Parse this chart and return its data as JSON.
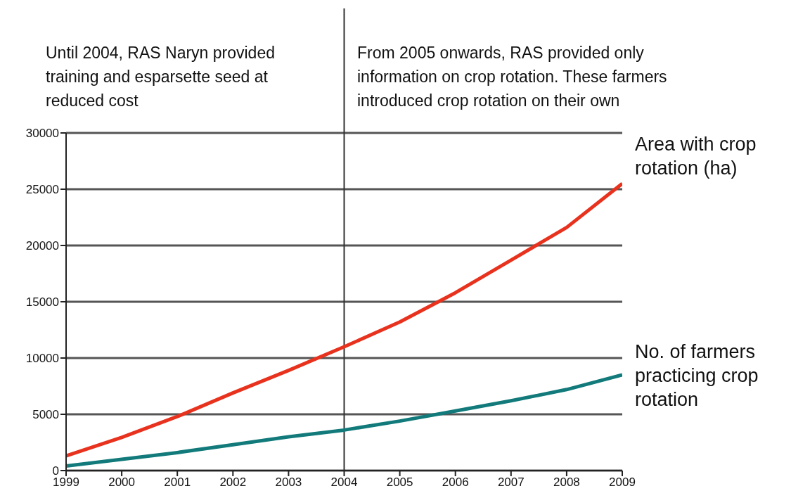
{
  "chart_data": {
    "type": "line",
    "x": [
      1999,
      2000,
      2001,
      2002,
      2003,
      2004,
      2005,
      2006,
      2007,
      2008,
      2009
    ],
    "series": [
      {
        "name": "Area with crop rotation (ha)",
        "color": "#e8321e",
        "values": [
          1300,
          2950,
          4800,
          6900,
          8900,
          11000,
          13200,
          15800,
          18700,
          21600,
          25500
        ]
      },
      {
        "name": "No. of farmers practicing crop rotation",
        "color": "#127a7a",
        "values": [
          400,
          1000,
          1600,
          2300,
          3000,
          3600,
          4400,
          5300,
          6200,
          7200,
          8500
        ]
      }
    ],
    "xlim": [
      1999,
      2009
    ],
    "xticks": [
      1999,
      2000,
      2001,
      2002,
      2003,
      2004,
      2005,
      2006,
      2007,
      2008,
      2009
    ],
    "ylim": [
      0,
      30000
    ],
    "yticks": [
      0,
      5000,
      10000,
      15000,
      20000,
      25000,
      30000
    ],
    "grid": "y",
    "legend": false,
    "marker": "none",
    "line_style": "solid",
    "ref_lines": [
      {
        "axis": "x",
        "value": 2004,
        "label": null,
        "color": "#333333"
      }
    ],
    "annotations": [
      "Until 2004, RAS Naryn provided training and esparsette seed at reduced cost",
      "From 2005 onwards, RAS provided only information on crop rotation. These farmers introduced  crop rotation on their own"
    ]
  }
}
